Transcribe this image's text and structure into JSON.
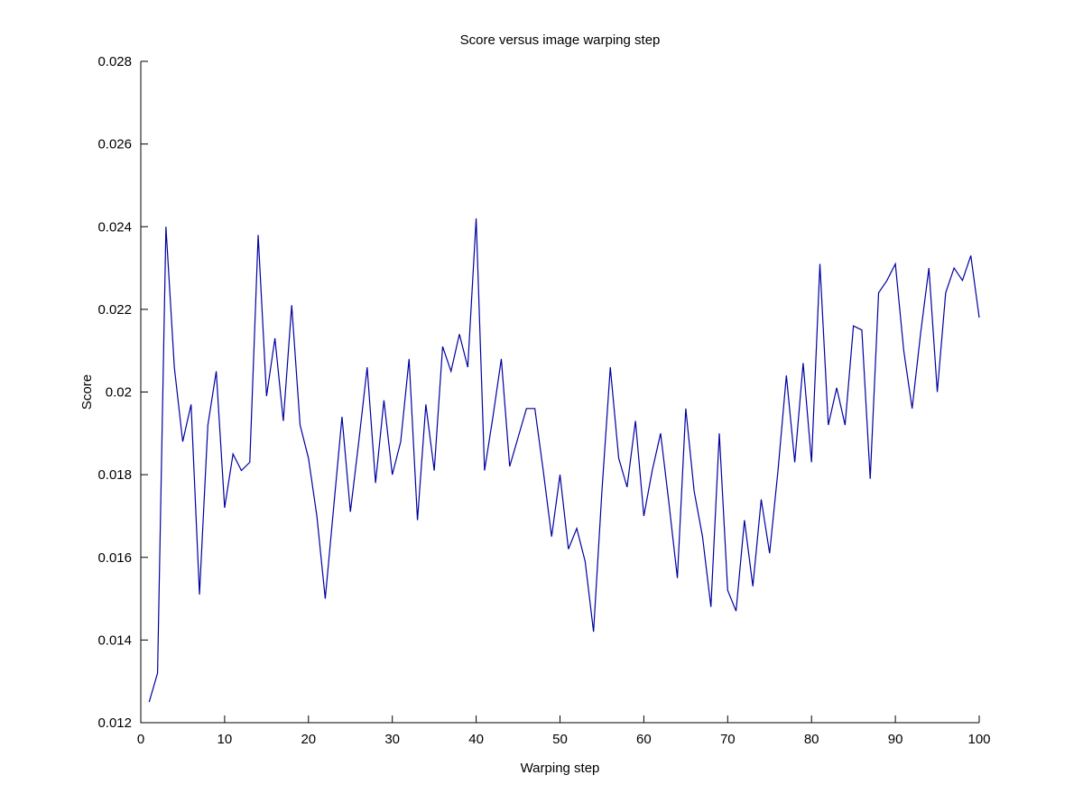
{
  "figure": {
    "background": "#ffffff",
    "title": "Score versus image warping step"
  },
  "chart_data": {
    "type": "line",
    "title": "Score versus image warping step",
    "xlabel": "Warping step",
    "ylabel": "Score",
    "xlim": [
      0,
      100
    ],
    "ylim": [
      0.012,
      0.028
    ],
    "grid": false,
    "legend": null,
    "box": false,
    "line_color": "#0000a0",
    "axis_color": "#000000",
    "x_ticks": [
      0,
      10,
      20,
      30,
      40,
      50,
      60,
      70,
      80,
      90,
      100
    ],
    "x_tick_labels": [
      "0",
      "10",
      "20",
      "30",
      "40",
      "50",
      "60",
      "70",
      "80",
      "90",
      "100"
    ],
    "y_ticks": [
      0.012,
      0.014,
      0.016,
      0.018,
      0.02,
      0.022,
      0.024,
      0.026,
      0.028
    ],
    "y_tick_labels": [
      "0.012",
      "0.014",
      "0.016",
      "0.018",
      "0.02",
      "0.022",
      "0.024",
      "0.026",
      "0.028"
    ],
    "x": [
      1,
      2,
      3,
      4,
      5,
      6,
      7,
      8,
      9,
      10,
      11,
      12,
      13,
      14,
      15,
      16,
      17,
      18,
      19,
      20,
      21,
      22,
      23,
      24,
      25,
      26,
      27,
      28,
      29,
      30,
      31,
      32,
      33,
      34,
      35,
      36,
      37,
      38,
      39,
      40,
      41,
      42,
      43,
      44,
      45,
      46,
      47,
      48,
      49,
      50,
      51,
      52,
      53,
      54,
      55,
      56,
      57,
      58,
      59,
      60,
      61,
      62,
      63,
      64,
      65,
      66,
      67,
      68,
      69,
      70,
      71,
      72,
      73,
      74,
      75,
      76,
      77,
      78,
      79,
      80,
      81,
      82,
      83,
      84,
      85,
      86,
      87,
      88,
      89,
      90,
      91,
      92,
      93,
      94,
      95,
      96,
      97,
      98,
      99,
      100
    ],
    "values": [
      0.0125,
      0.0132,
      0.024,
      0.0206,
      0.0188,
      0.0197,
      0.0151,
      0.0192,
      0.0205,
      0.0172,
      0.0185,
      0.0181,
      0.0183,
      0.0238,
      0.0199,
      0.0213,
      0.0193,
      0.0221,
      0.0192,
      0.0184,
      0.017,
      0.015,
      0.0172,
      0.0194,
      0.0171,
      0.0188,
      0.0206,
      0.0178,
      0.0198,
      0.018,
      0.0188,
      0.0208,
      0.0169,
      0.0197,
      0.0181,
      0.0211,
      0.0205,
      0.0214,
      0.0206,
      0.0242,
      0.0181,
      0.0194,
      0.0208,
      0.0182,
      0.0189,
      0.0196,
      0.0196,
      0.0181,
      0.0165,
      0.018,
      0.0162,
      0.0167,
      0.0159,
      0.0142,
      0.0176,
      0.0206,
      0.0184,
      0.0177,
      0.0193,
      0.017,
      0.0181,
      0.019,
      0.0173,
      0.0155,
      0.0196,
      0.0176,
      0.0165,
      0.0148,
      0.019,
      0.0152,
      0.0147,
      0.0169,
      0.0153,
      0.0174,
      0.0161,
      0.0181,
      0.0204,
      0.0183,
      0.0207,
      0.0183,
      0.0231,
      0.0192,
      0.0201,
      0.0192,
      0.0216,
      0.0215,
      0.0179,
      0.0224,
      0.0227,
      0.0231,
      0.021,
      0.0196,
      0.0214,
      0.023,
      0.02,
      0.0224,
      0.023,
      0.0227,
      0.0233,
      0.0218
    ]
  }
}
